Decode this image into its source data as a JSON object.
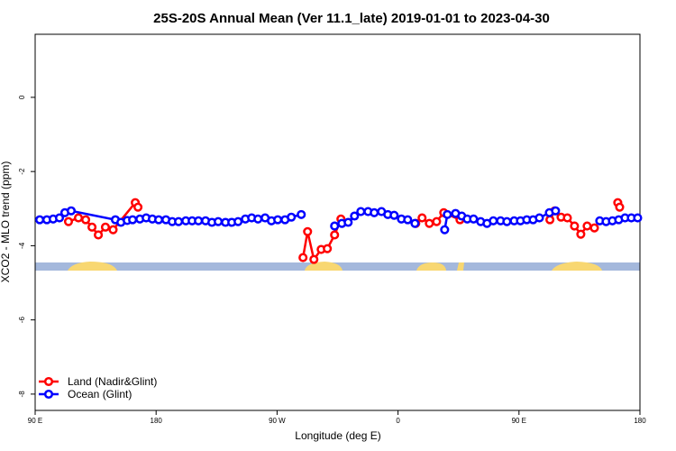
{
  "chart_data": {
    "type": "line",
    "title": "25S-20S Annual Mean (Ver 11.1_late)   2019-01-01 to 2023-04-30",
    "x_label": "Longitude (deg E)",
    "y_label": "XCO2 - MLO trend (ppm)",
    "xlim": [
      90,
      540
    ],
    "xticks": [
      {
        "value": 90,
        "label": "90 E"
      },
      180,
      {
        "value": 270,
        "label": "90 W"
      },
      {
        "value": 360,
        "label": "0"
      },
      {
        "value": 450,
        "label": "90 E"
      },
      {
        "value": 540,
        "label": "180"
      }
    ],
    "ylim": [
      -8.44,
      1.7
    ],
    "yticks": [
      0,
      -2,
      -4,
      -6,
      -8
    ],
    "legend": "bottom-left",
    "series": [
      {
        "name": "Land (Nadir&Glint)",
        "color": "#ff0000",
        "x": [
          114.8,
          122.2,
          127.6,
          132.3,
          137.0,
          142.3,
          148.0,
          164.5,
          166.5,
          null,
          289.3,
          292.7,
          297.4,
          302.8,
          307.4,
          312.8,
          317.5,
          null,
          373.2,
          377.9,
          383.3,
          388.7,
          394.0,
          406.1,
          null,
          473.0,
          476.6,
          481.3,
          486.0,
          491.3,
          496.0,
          500.7,
          506.1,
          null,
          523.5,
          524.9
        ],
        "values": [
          -3.35,
          -3.25,
          -3.3,
          -3.5,
          -3.71,
          -3.5,
          -3.57,
          -2.84,
          -2.96,
          null,
          -4.32,
          -3.62,
          -4.37,
          -4.1,
          -4.08,
          -3.71,
          -3.28,
          null,
          -3.4,
          -3.25,
          -3.4,
          -3.35,
          -3.11,
          -3.3,
          null,
          -3.3,
          -3.06,
          -3.23,
          -3.25,
          -3.47,
          -3.69,
          -3.47,
          -3.52,
          null,
          -2.84,
          -2.96
        ]
      },
      {
        "name": "Ocean (Glint)",
        "color": "#0000ff",
        "x": [
          93.4,
          98.7,
          103.4,
          108.1,
          112.1,
          116.8,
          149.7,
          153.8,
          158.5,
          162.5,
          167.9,
          172.6,
          177.2,
          181.9,
          187.3,
          192.0,
          196.7,
          202.1,
          206.8,
          211.5,
          216.8,
          221.5,
          226.2,
          231.6,
          236.3,
          241.0,
          246.4,
          251.1,
          255.8,
          261.1,
          265.8,
          270.5,
          275.9,
          280.6,
          288.0,
          null,
          312.8,
          318.2,
          322.9,
          327.6,
          332.3,
          337.7,
          342.3,
          347.7,
          352.4,
          357.1,
          362.5,
          367.2,
          372.6,
          null,
          394.7,
          396.7,
          402.8,
          407.4,
          411.5,
          416.2,
          421.5,
          426.2,
          430.9,
          436.3,
          441.0,
          446.4,
          451.1,
          455.8,
          460.5,
          465.2,
          472.6,
          477.2,
          null,
          510.1,
          514.8,
          519.5,
          524.2,
          528.9,
          533.6,
          538.3
        ],
        "values": [
          -3.3,
          -3.3,
          -3.28,
          -3.25,
          -3.11,
          -3.06,
          -3.3,
          -3.37,
          -3.32,
          -3.3,
          -3.28,
          -3.25,
          -3.28,
          -3.3,
          -3.3,
          -3.35,
          -3.35,
          -3.33,
          -3.33,
          -3.33,
          -3.33,
          -3.37,
          -3.35,
          -3.37,
          -3.37,
          -3.35,
          -3.28,
          -3.25,
          -3.28,
          -3.25,
          -3.33,
          -3.3,
          -3.3,
          -3.23,
          -3.16,
          null,
          -3.47,
          -3.4,
          -3.37,
          -3.2,
          -3.08,
          -3.08,
          -3.11,
          -3.08,
          -3.16,
          -3.18,
          -3.28,
          -3.3,
          -3.4,
          null,
          -3.57,
          -3.16,
          -3.13,
          -3.2,
          -3.28,
          -3.28,
          -3.35,
          -3.4,
          -3.33,
          -3.33,
          -3.35,
          -3.33,
          -3.33,
          -3.3,
          -3.3,
          -3.25,
          -3.11,
          -3.06,
          null,
          -3.33,
          -3.35,
          -3.33,
          -3.3,
          -3.25,
          -3.25,
          -3.25
        ]
      }
    ]
  }
}
